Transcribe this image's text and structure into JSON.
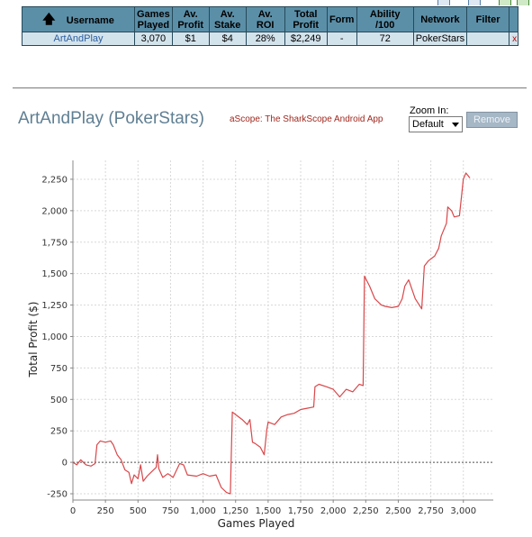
{
  "table": {
    "headers": [
      {
        "label": "Username"
      },
      {
        "label": "Games Played"
      },
      {
        "label": "Av. Profit"
      },
      {
        "label": "Av. Stake"
      },
      {
        "label": "Av. ROI"
      },
      {
        "label": "Total Profit"
      },
      {
        "label": "Form"
      },
      {
        "label": "Ability /100"
      },
      {
        "label": "Network"
      },
      {
        "label": "Filter"
      }
    ],
    "row": {
      "username": "ArtAndPlay",
      "games_played": "3,070",
      "av_profit": "$1",
      "av_stake": "$4",
      "av_roi": "28%",
      "total_profit": "$2,249",
      "form": "-",
      "ability": "72",
      "network": "PokerStars",
      "filter": "",
      "remove_mark": "x"
    }
  },
  "player_title": "ArtAndPlay (PokerStars)",
  "promo_link": "aScope: The SharkScope Android App",
  "zoom": {
    "label": "Zoom In:",
    "selected": "Default"
  },
  "remove_button": "Remove",
  "colors": {
    "header_bg": "#5b8fa8",
    "row_bg": "#d3e3ec",
    "line": "#d9474a",
    "title": "#5f7f93"
  },
  "chart_data": {
    "type": "line",
    "xlabel": "Games Played",
    "ylabel": "Total Profit ($)",
    "xlim": [
      0,
      3230
    ],
    "ylim": [
      -300,
      2400
    ],
    "x_ticks": [
      "0",
      "250",
      "500",
      "750",
      "1,000",
      "1,250",
      "1,500",
      "1,750",
      "2,000",
      "2,250",
      "2,500",
      "2,750",
      "3,000"
    ],
    "y_ticks": [
      "-250",
      "0",
      "250",
      "500",
      "750",
      "1,000",
      "1,250",
      "1,500",
      "1,750",
      "2,000",
      "2,250"
    ],
    "grid": true,
    "series": [
      {
        "values": [
          [
            0,
            0
          ],
          [
            30,
            -20
          ],
          [
            60,
            20
          ],
          [
            100,
            -20
          ],
          [
            140,
            -30
          ],
          [
            170,
            -10
          ],
          [
            185,
            140
          ],
          [
            210,
            170
          ],
          [
            250,
            160
          ],
          [
            290,
            170
          ],
          [
            310,
            140
          ],
          [
            340,
            60
          ],
          [
            370,
            20
          ],
          [
            400,
            -60
          ],
          [
            430,
            -80
          ],
          [
            450,
            -170
          ],
          [
            470,
            -100
          ],
          [
            500,
            -130
          ],
          [
            520,
            -20
          ],
          [
            540,
            -150
          ],
          [
            570,
            -110
          ],
          [
            600,
            -80
          ],
          [
            640,
            -40
          ],
          [
            650,
            60
          ],
          [
            660,
            -50
          ],
          [
            690,
            -120
          ],
          [
            730,
            -90
          ],
          [
            770,
            -120
          ],
          [
            820,
            -10
          ],
          [
            850,
            -20
          ],
          [
            880,
            -100
          ],
          [
            950,
            -110
          ],
          [
            1000,
            -90
          ],
          [
            1050,
            -110
          ],
          [
            1100,
            -100
          ],
          [
            1140,
            -200
          ],
          [
            1180,
            -240
          ],
          [
            1210,
            -250
          ],
          [
            1225,
            400
          ],
          [
            1250,
            380
          ],
          [
            1300,
            340
          ],
          [
            1340,
            300
          ],
          [
            1360,
            340
          ],
          [
            1380,
            160
          ],
          [
            1400,
            150
          ],
          [
            1440,
            120
          ],
          [
            1470,
            60
          ],
          [
            1490,
            260
          ],
          [
            1500,
            320
          ],
          [
            1550,
            300
          ],
          [
            1600,
            360
          ],
          [
            1650,
            380
          ],
          [
            1700,
            390
          ],
          [
            1750,
            420
          ],
          [
            1800,
            430
          ],
          [
            1850,
            440
          ],
          [
            1860,
            600
          ],
          [
            1890,
            620
          ],
          [
            1950,
            600
          ],
          [
            2000,
            580
          ],
          [
            2050,
            520
          ],
          [
            2100,
            580
          ],
          [
            2150,
            560
          ],
          [
            2200,
            620
          ],
          [
            2230,
            610
          ],
          [
            2240,
            1480
          ],
          [
            2280,
            1400
          ],
          [
            2320,
            1300
          ],
          [
            2370,
            1250
          ],
          [
            2400,
            1240
          ],
          [
            2450,
            1230
          ],
          [
            2500,
            1240
          ],
          [
            2530,
            1300
          ],
          [
            2550,
            1400
          ],
          [
            2580,
            1450
          ],
          [
            2630,
            1300
          ],
          [
            2680,
            1220
          ],
          [
            2700,
            1560
          ],
          [
            2730,
            1600
          ],
          [
            2780,
            1640
          ],
          [
            2810,
            1700
          ],
          [
            2830,
            1800
          ],
          [
            2850,
            1850
          ],
          [
            2870,
            1900
          ],
          [
            2880,
            2030
          ],
          [
            2910,
            2000
          ],
          [
            2930,
            1950
          ],
          [
            2970,
            1960
          ],
          [
            3000,
            2250
          ],
          [
            3020,
            2300
          ],
          [
            3050,
            2260
          ]
        ]
      }
    ]
  }
}
